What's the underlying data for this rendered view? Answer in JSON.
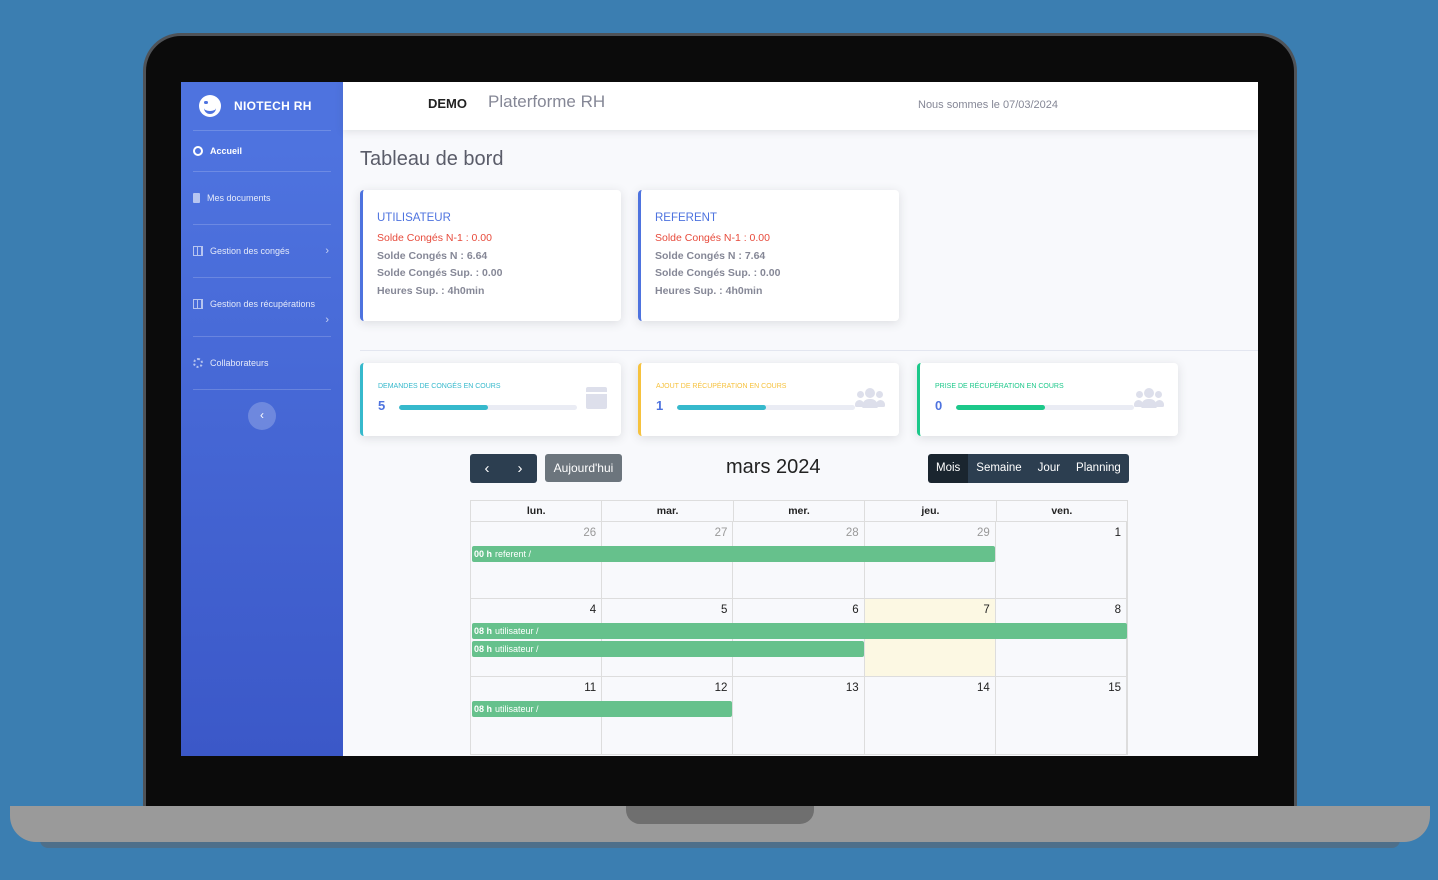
{
  "brand": "NIOTECH RH",
  "sidebar": {
    "items": [
      {
        "label": "Accueil"
      },
      {
        "label": "Mes documents"
      },
      {
        "label": "Gestion des congés"
      },
      {
        "label": "Gestion des récupérations"
      },
      {
        "label": "Collaborateurs"
      }
    ],
    "toggle": "‹"
  },
  "topbar": {
    "demo": "DEMO",
    "platform": "Platerforme RH",
    "date_text": "Nous sommes le 07/03/2024"
  },
  "page_title": "Tableau de bord",
  "info_cards": [
    {
      "role": "UTILISATEUR",
      "n1": "Solde Congés N-1 : 0.00",
      "n": "Solde Congés N : 6.64",
      "sup": "Solde Congés Sup. : 0.00",
      "hours": "Heures Sup. : 4h0min"
    },
    {
      "role": "REFERENT",
      "n1": "Solde Congés N-1 : 0.00",
      "n": "Solde Congés N : 7.64",
      "sup": "Solde Congés Sup. : 0.00",
      "hours": "Heures Sup. : 4h0min"
    }
  ],
  "stats": [
    {
      "label": "Demandes de congés en cours",
      "value": "5",
      "progress": 0.5,
      "color": "#36b9cc",
      "label_color": "#36b9cc",
      "icon": "calendar-icon"
    },
    {
      "label": "Ajout de récupération en cours",
      "value": "1",
      "progress": 0.5,
      "color": "#36b9cc",
      "label_color": "#f6c23e",
      "icon": "users-icon"
    },
    {
      "label": "Prise de récupération en cours",
      "value": "0",
      "progress": 0.5,
      "color": "#1cc88a",
      "label_color": "#1cc88a",
      "icon": "users-icon"
    }
  ],
  "calendar": {
    "prev": "‹",
    "next": "›",
    "today_label": "Aujourd'hui",
    "title": "mars 2024",
    "views": [
      "Mois",
      "Semaine",
      "Jour",
      "Planning"
    ],
    "active_view": "Mois",
    "weekdays": [
      "lun.",
      "mar.",
      "mer.",
      "jeu.",
      "ven."
    ],
    "weeks": [
      {
        "days": [
          "26",
          "27",
          "28",
          "29",
          "1"
        ],
        "other": [
          true,
          true,
          true,
          true,
          false
        ]
      },
      {
        "days": [
          "4",
          "5",
          "6",
          "7",
          "8"
        ],
        "other": [
          false,
          false,
          false,
          false,
          false
        ],
        "highlight": 3
      },
      {
        "days": [
          "11",
          "12",
          "13",
          "14",
          "15"
        ],
        "other": [
          false,
          false,
          false,
          false,
          false
        ]
      }
    ],
    "events": [
      {
        "time": "00 h",
        "title": "referent /",
        "week": 0,
        "start_day": 0,
        "end_day": 3
      },
      {
        "time": "08 h",
        "title": "utilisateur /",
        "week": 1,
        "start_day": 0,
        "end_day": 4
      },
      {
        "time": "08 h",
        "title": "utilisateur /",
        "week": 1,
        "start_day": 0,
        "end_day": 2
      },
      {
        "time": "08 h",
        "title": "utilisateur /",
        "week": 2,
        "start_day": 0,
        "end_day": 1
      }
    ],
    "event_color": "#66c18c"
  }
}
